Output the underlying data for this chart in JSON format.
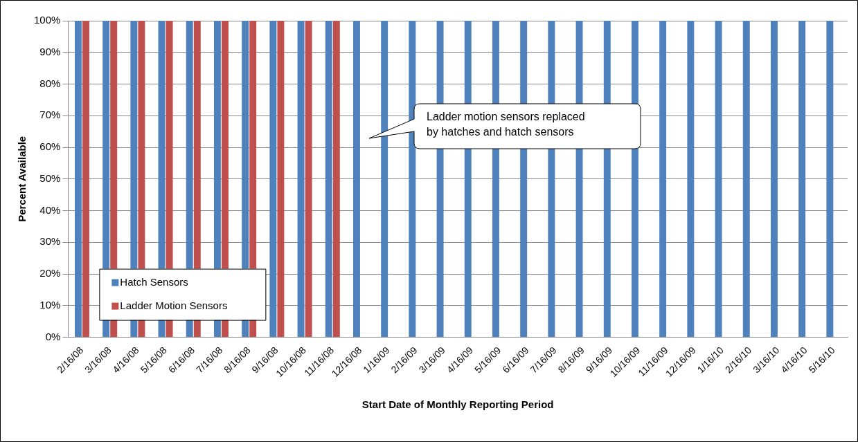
{
  "chart_data": {
    "type": "bar",
    "xlabel": "Start Date of Monthly Reporting Period",
    "ylabel": "Percent Available",
    "categories": [
      "2/16/08",
      "3/16/08",
      "4/16/08",
      "5/16/08",
      "6/16/08",
      "7/16/08",
      "8/16/08",
      "9/16/08",
      "10/16/08",
      "11/16/08",
      "12/16/08",
      "1/16/09",
      "2/16/09",
      "3/16/09",
      "4/16/09",
      "5/16/09",
      "6/16/09",
      "7/16/09",
      "8/16/09",
      "9/16/09",
      "10/16/09",
      "11/16/09",
      "12/16/09",
      "1/16/10",
      "2/16/10",
      "3/16/10",
      "4/16/10",
      "5/16/10"
    ],
    "series": [
      {
        "name": "Hatch Sensors",
        "color": "#4f81bd",
        "values": [
          100,
          100,
          100,
          100,
          100,
          100,
          100,
          100,
          100,
          100,
          100,
          100,
          100,
          100,
          100,
          100,
          100,
          100,
          100,
          100,
          100,
          100,
          100,
          100,
          100,
          100,
          100,
          100
        ]
      },
      {
        "name": "Ladder Motion Sensors",
        "color": "#c0504d",
        "values": [
          100,
          100,
          100,
          100,
          100,
          100,
          100,
          100,
          100,
          100,
          null,
          null,
          null,
          null,
          null,
          null,
          null,
          null,
          null,
          null,
          null,
          null,
          null,
          null,
          null,
          null,
          null,
          null
        ]
      }
    ],
    "ylim": [
      0,
      100
    ],
    "yticks": [
      {
        "value": 0,
        "label": "0%"
      },
      {
        "value": 10,
        "label": "10%"
      },
      {
        "value": 20,
        "label": "20%"
      },
      {
        "value": 30,
        "label": "30%"
      },
      {
        "value": 40,
        "label": "40%"
      },
      {
        "value": 50,
        "label": "50%"
      },
      {
        "value": 60,
        "label": "60%"
      },
      {
        "value": 70,
        "label": "70%"
      },
      {
        "value": 80,
        "label": "80%"
      },
      {
        "value": 90,
        "label": "90%"
      },
      {
        "value": 100,
        "label": "100%"
      }
    ],
    "grid": "y",
    "legend": "bottom left",
    "annotations": [
      "Ladder motion sensors replaced\nby hatches and hatch sensors"
    ]
  }
}
